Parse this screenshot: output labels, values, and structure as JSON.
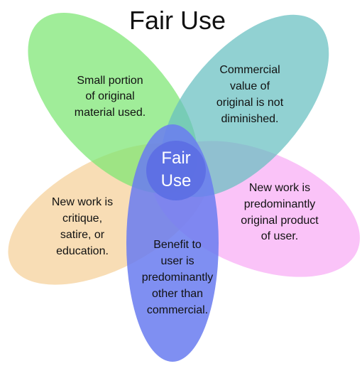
{
  "title": "Fair Use",
  "center": {
    "lines": [
      "Fair",
      "Use"
    ],
    "color": "#5d6fe4"
  },
  "petals": [
    {
      "id": "small-portion",
      "color": "#7be672",
      "lines": [
        "Small portion",
        "of original",
        "material used."
      ]
    },
    {
      "id": "commercial-value",
      "color": "#66bfc1",
      "lines": [
        "Commercial",
        "value of",
        "original is not",
        "diminished."
      ]
    },
    {
      "id": "predominantly-original",
      "color": "#f7a7f5",
      "lines": [
        "New work is",
        "predominantly",
        "original product",
        "of user."
      ]
    },
    {
      "id": "benefit-to-user",
      "color": "#6a7df0",
      "lines": [
        "Benefit to",
        "user is",
        "predominantly",
        "other than",
        "commercial."
      ]
    },
    {
      "id": "critique-satire",
      "color": "#f6d4a0",
      "lines": [
        "New work is",
        "critique,",
        "satire, or",
        "education."
      ]
    }
  ]
}
